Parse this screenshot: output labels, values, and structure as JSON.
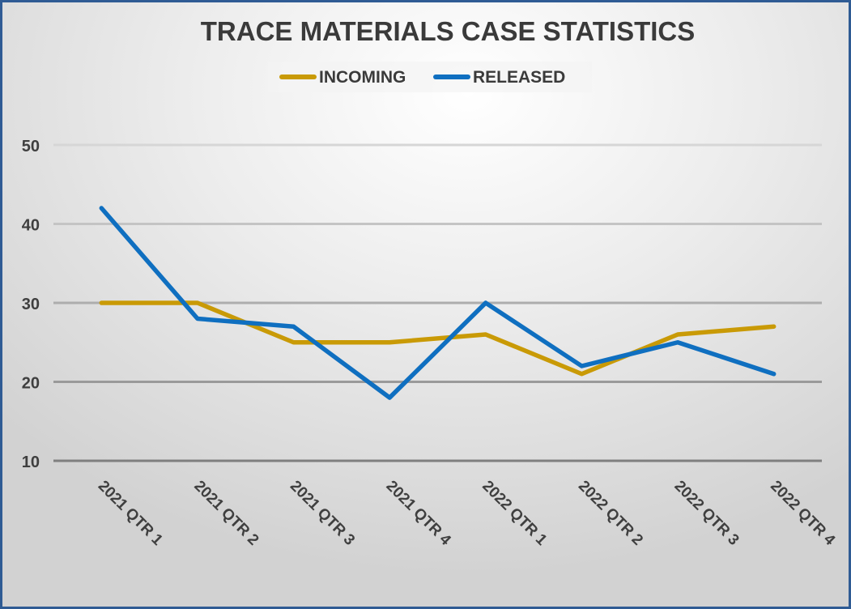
{
  "chart_data": {
    "type": "line",
    "title": "TRACE MATERIALS CASE STATISTICS",
    "categories": [
      "2021 QTR 1",
      "2021 QTR 2",
      "2021 QTR 3",
      "2021 QTR 4",
      "2022 QTR 1",
      "2022 QTR 2",
      "2022 QTR 3",
      "2022 QTR 4"
    ],
    "series": [
      {
        "name": "INCOMING",
        "color": "#C99A06",
        "values": [
          30,
          30,
          25,
          25,
          26,
          21,
          26,
          27
        ]
      },
      {
        "name": "RELEASED",
        "color": "#0F6FC0",
        "values": [
          42,
          28,
          27,
          18,
          30,
          22,
          25,
          21
        ]
      }
    ],
    "ylim": [
      10,
      50
    ],
    "yticks": [
      10,
      20,
      30,
      40,
      50
    ],
    "grid": true,
    "legend": "top",
    "xlabel": "",
    "ylabel": ""
  }
}
